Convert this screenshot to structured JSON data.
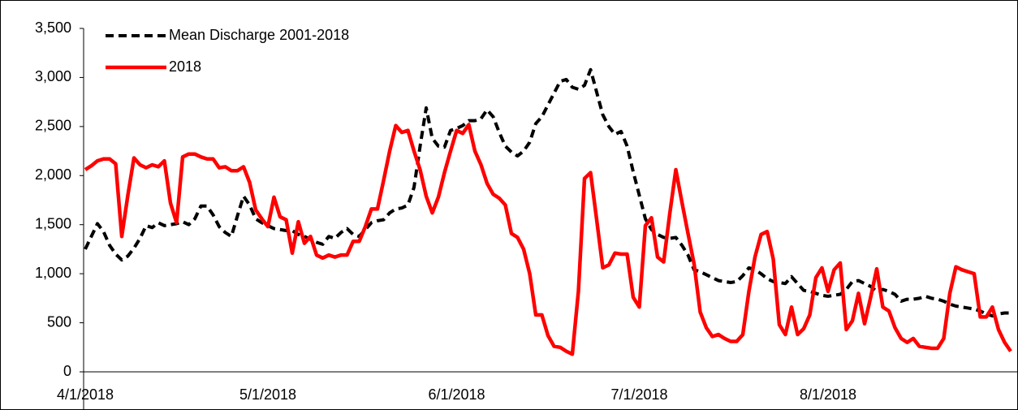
{
  "chart_data": {
    "type": "line",
    "x": [
      "4/1/2018",
      "4/2/2018",
      "4/3/2018",
      "4/4/2018",
      "4/5/2018",
      "4/6/2018",
      "4/7/2018",
      "4/8/2018",
      "4/9/2018",
      "4/10/2018",
      "4/11/2018",
      "4/12/2018",
      "4/13/2018",
      "4/14/2018",
      "4/15/2018",
      "4/16/2018",
      "4/17/2018",
      "4/18/2018",
      "4/19/2018",
      "4/20/2018",
      "4/21/2018",
      "4/22/2018",
      "4/23/2018",
      "4/24/2018",
      "4/25/2018",
      "4/26/2018",
      "4/27/2018",
      "4/28/2018",
      "4/29/2018",
      "4/30/2018",
      "5/1/2018",
      "5/2/2018",
      "5/3/2018",
      "5/4/2018",
      "5/5/2018",
      "5/6/2018",
      "5/7/2018",
      "5/8/2018",
      "5/9/2018",
      "5/10/2018",
      "5/11/2018",
      "5/12/2018",
      "5/13/2018",
      "5/14/2018",
      "5/15/2018",
      "5/16/2018",
      "5/17/2018",
      "5/18/2018",
      "5/19/2018",
      "5/20/2018",
      "5/21/2018",
      "5/22/2018",
      "5/23/2018",
      "5/24/2018",
      "5/25/2018",
      "5/26/2018",
      "5/27/2018",
      "5/28/2018",
      "5/29/2018",
      "5/30/2018",
      "5/31/2018",
      "6/1/2018",
      "6/2/2018",
      "6/3/2018",
      "6/4/2018",
      "6/5/2018",
      "6/6/2018",
      "6/7/2018",
      "6/8/2018",
      "6/9/2018",
      "6/10/2018",
      "6/11/2018",
      "6/12/2018",
      "6/13/2018",
      "6/14/2018",
      "6/15/2018",
      "6/16/2018",
      "6/17/2018",
      "6/18/2018",
      "6/19/2018",
      "6/20/2018",
      "6/21/2018",
      "6/22/2018",
      "6/23/2018",
      "6/24/2018",
      "6/25/2018",
      "6/26/2018",
      "6/27/2018",
      "6/28/2018",
      "6/29/2018",
      "6/30/2018",
      "7/1/2018",
      "7/2/2018",
      "7/3/2018",
      "7/4/2018",
      "7/5/2018",
      "7/6/2018",
      "7/7/2018",
      "7/8/2018",
      "7/9/2018",
      "7/10/2018",
      "7/11/2018",
      "7/12/2018",
      "7/13/2018",
      "7/14/2018",
      "7/15/2018",
      "7/16/2018",
      "7/17/2018",
      "7/18/2018",
      "7/19/2018",
      "7/20/2018",
      "7/21/2018",
      "7/22/2018",
      "7/23/2018",
      "7/24/2018",
      "7/25/2018",
      "7/26/2018",
      "7/27/2018",
      "7/28/2018",
      "7/29/2018",
      "7/30/2018",
      "7/31/2018",
      "8/1/2018",
      "8/2/2018",
      "8/3/2018",
      "8/4/2018",
      "8/5/2018",
      "8/6/2018",
      "8/7/2018",
      "8/8/2018",
      "8/9/2018",
      "8/10/2018",
      "8/11/2018",
      "8/12/2018",
      "8/13/2018",
      "8/14/2018",
      "8/15/2018",
      "8/16/2018",
      "8/17/2018",
      "8/18/2018",
      "8/19/2018",
      "8/20/2018",
      "8/21/2018",
      "8/22/2018",
      "8/23/2018",
      "8/24/2018",
      "8/25/2018",
      "8/26/2018",
      "8/27/2018",
      "8/28/2018",
      "8/29/2018",
      "8/30/2018",
      "8/31/2018"
    ],
    "series": [
      {
        "name": "Mean Discharge 2001-2018",
        "color": "#000000",
        "dash": true,
        "values": [
          1250,
          1380,
          1510,
          1430,
          1290,
          1200,
          1140,
          1180,
          1260,
          1360,
          1490,
          1470,
          1520,
          1490,
          1500,
          1510,
          1530,
          1500,
          1560,
          1690,
          1690,
          1600,
          1480,
          1420,
          1380,
          1590,
          1790,
          1700,
          1560,
          1520,
          1490,
          1460,
          1450,
          1440,
          1440,
          1400,
          1380,
          1350,
          1320,
          1300,
          1380,
          1360,
          1420,
          1460,
          1400,
          1380,
          1450,
          1520,
          1540,
          1550,
          1620,
          1660,
          1670,
          1700,
          1880,
          2300,
          2690,
          2380,
          2300,
          2290,
          2460,
          2480,
          2510,
          2560,
          2560,
          2580,
          2670,
          2600,
          2440,
          2300,
          2240,
          2200,
          2250,
          2340,
          2530,
          2600,
          2720,
          2840,
          2960,
          2980,
          2900,
          2880,
          2920,
          3080,
          2850,
          2620,
          2500,
          2420,
          2450,
          2300,
          2040,
          1800,
          1560,
          1450,
          1400,
          1370,
          1360,
          1370,
          1290,
          1190,
          1040,
          1020,
          990,
          960,
          930,
          920,
          910,
          920,
          980,
          1060,
          1040,
          1000,
          950,
          920,
          910,
          900,
          970,
          900,
          830,
          820,
          800,
          780,
          770,
          780,
          790,
          840,
          920,
          930,
          900,
          870,
          820,
          840,
          820,
          790,
          720,
          740,
          740,
          750,
          770,
          750,
          740,
          720,
          690,
          670,
          660,
          650,
          640,
          620,
          590,
          570,
          590,
          600,
          600
        ]
      },
      {
        "name": "2018",
        "color": "#ff0000",
        "dash": false,
        "values": [
          2060,
          2100,
          2150,
          2170,
          2170,
          2120,
          1380,
          1800,
          2180,
          2110,
          2080,
          2110,
          2090,
          2150,
          1720,
          1520,
          2190,
          2220,
          2220,
          2190,
          2170,
          2170,
          2080,
          2090,
          2050,
          2050,
          2090,
          1930,
          1650,
          1560,
          1480,
          1780,
          1580,
          1550,
          1210,
          1530,
          1310,
          1380,
          1190,
          1160,
          1190,
          1170,
          1190,
          1190,
          1330,
          1330,
          1480,
          1660,
          1660,
          1950,
          2250,
          2510,
          2440,
          2460,
          2250,
          2060,
          1790,
          1620,
          1780,
          2030,
          2250,
          2460,
          2430,
          2520,
          2250,
          2110,
          1920,
          1810,
          1770,
          1700,
          1410,
          1370,
          1250,
          1000,
          580,
          580,
          370,
          260,
          250,
          210,
          180,
          820,
          1970,
          2030,
          1550,
          1060,
          1090,
          1210,
          1200,
          1200,
          760,
          660,
          1490,
          1570,
          1170,
          1120,
          1610,
          2060,
          1730,
          1410,
          1100,
          610,
          450,
          360,
          380,
          340,
          310,
          310,
          380,
          820,
          1170,
          1400,
          1430,
          1150,
          480,
          380,
          660,
          380,
          440,
          580,
          960,
          1060,
          820,
          1040,
          1110,
          430,
          520,
          800,
          490,
          760,
          1050,
          660,
          620,
          450,
          340,
          300,
          340,
          260,
          250,
          240,
          240,
          340,
          800,
          1070,
          1040,
          1020,
          1000,
          560,
          560,
          660,
          430,
          300,
          210
        ]
      }
    ],
    "ylim": [
      0,
      3500
    ],
    "yticks": [
      0,
      {
        "value": 500,
        "label": "500"
      },
      {
        "value": 1000,
        "label": "1,000"
      },
      {
        "value": 1500,
        "label": "1,500"
      },
      {
        "value": 2000,
        "label": "2,000"
      },
      {
        "value": 2500,
        "label": "2,500"
      },
      {
        "value": 3000,
        "label": "3,000"
      },
      {
        "value": 3500,
        "label": "3,500"
      }
    ],
    "xticks": [
      "4/1/2018",
      "5/1/2018",
      "6/1/2018",
      "7/1/2018",
      "8/1/2018"
    ],
    "grid": false,
    "legend": "top-left"
  }
}
